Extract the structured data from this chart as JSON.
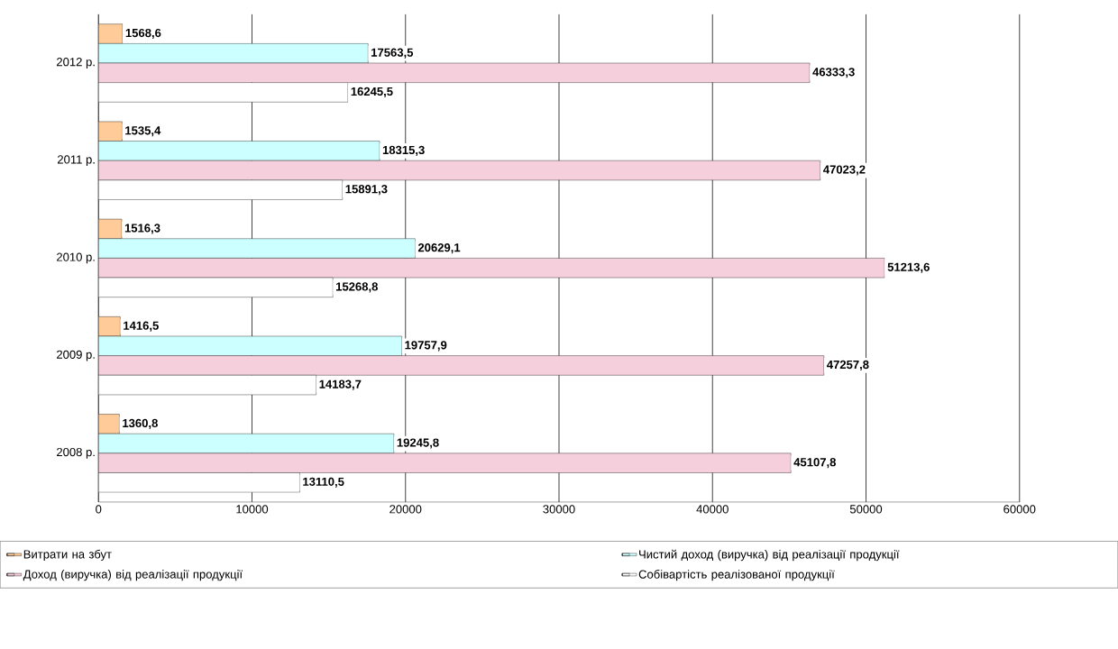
{
  "chart_data": {
    "type": "bar",
    "orientation": "horizontal",
    "categories": [
      "2012 р.",
      "2011 р.",
      "2010 р.",
      "2009 р.",
      "2008 р."
    ],
    "series": [
      {
        "name": "Витрати на збут",
        "color": "#ffcc99",
        "values": [
          1568.6,
          1535.4,
          1516.3,
          1416.5,
          1360.8
        ],
        "value_labels": [
          "1568,6",
          "1535,4",
          "1516,3",
          "1416,5",
          "1360,8"
        ]
      },
      {
        "name": "Чистий доход (виручка) від реалізації продукції",
        "color": "#ccffff",
        "values": [
          17563.5,
          18315.3,
          20629.1,
          19757.9,
          19245.8
        ],
        "value_labels": [
          "17563,5",
          "18315,3",
          "20629,1",
          "19757,9",
          "19245,8"
        ]
      },
      {
        "name": "Доход (виручка) від реалізації продукції",
        "color": "#f5d0dc",
        "values": [
          46333.3,
          47023.2,
          51213.6,
          47257.8,
          45107.8
        ],
        "value_labels": [
          "46333,3",
          "47023,2",
          "51213,6",
          "47257,8",
          "45107,8"
        ]
      },
      {
        "name": "Собівартість реалізованої продукції",
        "color": "#ffffff",
        "values": [
          16245.5,
          15891.3,
          15268.8,
          14183.7,
          13110.5
        ],
        "value_labels": [
          "16245,5",
          "15891,3",
          "15268,8",
          "14183,7",
          "13110,5"
        ]
      }
    ],
    "xlim": [
      0,
      60000
    ],
    "xticks": [
      0,
      10000,
      20000,
      30000,
      40000,
      50000,
      60000
    ],
    "grid": "x",
    "legend": "bottom"
  }
}
